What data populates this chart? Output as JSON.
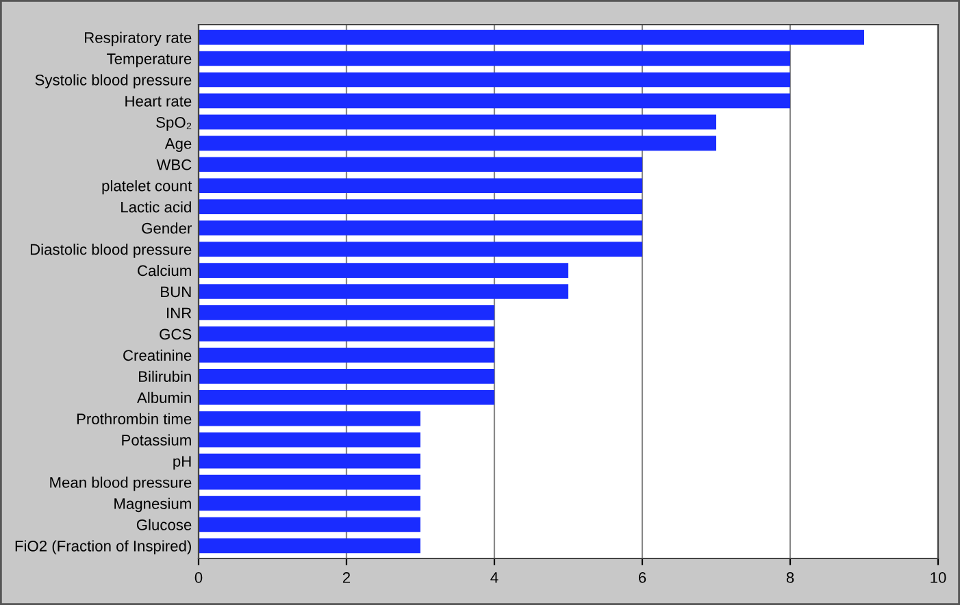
{
  "chart_data": {
    "type": "bar",
    "orientation": "horizontal",
    "categories": [
      "Respiratory rate",
      "Temperature",
      "Systolic blood pressure",
      "Heart rate",
      "SpO₂",
      "Age",
      "WBC",
      "platelet count",
      "Lactic acid",
      "Gender",
      "Diastolic blood pressure",
      "Calcium",
      "BUN",
      "INR",
      "GCS",
      "Creatinine",
      "Bilirubin",
      "Albumin",
      "Prothrombin time",
      "Potassium",
      "pH",
      "Mean blood pressure",
      "Magnesium",
      "Glucose",
      "FiO2 (Fraction of Inspired)"
    ],
    "values": [
      9,
      8,
      8,
      8,
      7,
      7,
      6,
      6,
      6,
      6,
      6,
      5,
      5,
      4,
      4,
      4,
      4,
      4,
      3,
      3,
      3,
      3,
      3,
      3,
      3
    ],
    "color": "#1a2cff",
    "xlim": [
      0,
      10
    ],
    "xticks": [
      0,
      2,
      4,
      6,
      8,
      10
    ],
    "grid": "x",
    "legend": false
  }
}
